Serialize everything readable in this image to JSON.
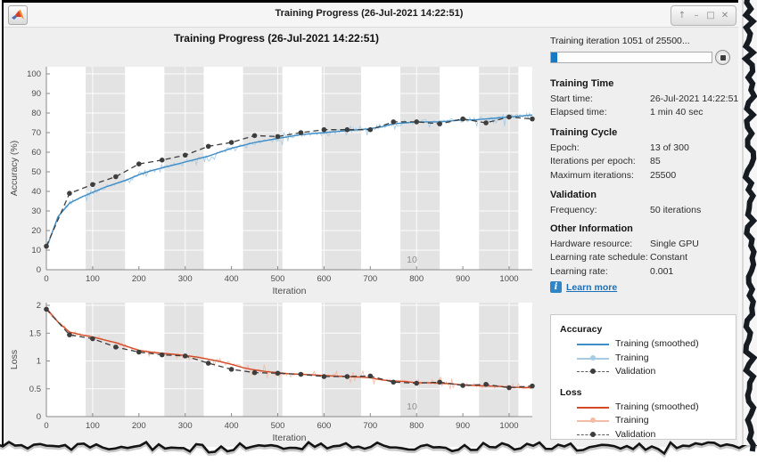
{
  "window": {
    "title": "Training Progress (26-Jul-2021 14:22:51)",
    "controls": [
      {
        "name": "float",
        "glyph": "↑"
      },
      {
        "name": "minimize",
        "glyph": "–"
      },
      {
        "name": "maximize",
        "glyph": "□"
      },
      {
        "name": "close",
        "glyph": "✕"
      }
    ]
  },
  "figure_title": "Training Progress (26-Jul-2021 14:22:51)",
  "panel": {
    "iteration_status": "Training iteration 1051 of 25500...",
    "progress_percent": 4.1,
    "sections": [
      {
        "title": "Training Time",
        "rows": [
          {
            "label": "Start time:",
            "value": "26-Jul-2021 14:22:51"
          },
          {
            "label": "Elapsed time:",
            "value": "1 min 40 sec"
          }
        ]
      },
      {
        "title": "Training Cycle",
        "rows": [
          {
            "label": "Epoch:",
            "value": "13 of 300"
          },
          {
            "label": "Iterations per epoch:",
            "value": "85"
          },
          {
            "label": "Maximum iterations:",
            "value": "25500"
          }
        ]
      },
      {
        "title": "Validation",
        "rows": [
          {
            "label": "Frequency:",
            "value": "50 iterations"
          }
        ]
      },
      {
        "title": "Other Information",
        "rows": [
          {
            "label": "Hardware resource:",
            "value": "Single GPU"
          },
          {
            "label": "Learning rate schedule:",
            "value": "Constant"
          },
          {
            "label": "Learning rate:",
            "value": "0.001"
          }
        ]
      }
    ],
    "learn_more": "Learn more"
  },
  "legend": {
    "groups": [
      {
        "title": "Accuracy",
        "entries": [
          "Training (smoothed)",
          "Training",
          "Validation"
        ]
      },
      {
        "title": "Loss",
        "entries": [
          "Training (smoothed)",
          "Training",
          "Validation"
        ]
      }
    ]
  },
  "colors": {
    "accent_blue": "#1779c4",
    "acc_smoothed": "#3f8dc6",
    "acc_raw": "#a8cbe4",
    "loss_smoothed": "#d24a26",
    "loss_raw": "#f3bca6",
    "validation": "#3d3d3d",
    "link_blue": "#1b6fb5",
    "epoch_band": "#e3e3e3"
  },
  "chart_data": [
    {
      "type": "line",
      "title": "Training Progress (26-Jul-2021 14:22:51)",
      "xlabel": "Iteration",
      "ylabel": "Accuracy (%)",
      "xlim": [
        0,
        1050
      ],
      "ylim": [
        0,
        100
      ],
      "xticks": [
        0,
        100,
        200,
        300,
        400,
        500,
        600,
        700,
        800,
        900,
        1000
      ],
      "yticks": [
        0,
        10,
        20,
        30,
        40,
        50,
        60,
        70,
        80,
        90,
        100
      ],
      "epoch_size": 85,
      "shaded_epochs": [
        2,
        4,
        6,
        8,
        10,
        12
      ],
      "epoch_label": {
        "text": "10",
        "iteration": 790
      },
      "series": [
        {
          "name": "Training (smoothed)",
          "x_step": 25,
          "y": [
            11,
            27,
            34,
            37,
            39.5,
            42,
            44,
            46,
            48.5,
            50.5,
            52,
            53.5,
            55,
            56.5,
            58,
            60,
            62,
            63.5,
            65,
            66,
            67,
            68,
            69,
            69.5,
            70,
            70.5,
            71,
            71.5,
            72,
            73,
            74.5,
            75,
            75.5,
            75.5,
            75.5,
            76,
            76.5,
            76.5,
            77,
            77.5,
            78,
            78.5,
            79
          ]
        },
        {
          "name": "Training",
          "style": "raw_noisy_version_of_smoothed"
        },
        {
          "name": "Validation",
          "x_step": 50,
          "y": [
            12,
            39,
            43.5,
            47.5,
            54,
            56,
            58.5,
            63,
            65,
            68.5,
            68,
            70,
            71.5,
            71.5,
            71.5,
            75.5,
            75.5,
            74.5,
            77,
            75,
            78,
            77
          ]
        }
      ]
    },
    {
      "type": "line",
      "xlabel": "Iteration",
      "ylabel": "Loss",
      "xlim": [
        0,
        1050
      ],
      "ylim": [
        0,
        2
      ],
      "xticks": [
        0,
        100,
        200,
        300,
        400,
        500,
        600,
        700,
        800,
        900,
        1000
      ],
      "yticks": [
        0,
        0.5,
        1,
        1.5,
        2
      ],
      "epoch_size": 85,
      "shaded_epochs": [
        2,
        4,
        6,
        8,
        10,
        12
      ],
      "epoch_label": {
        "text": "10",
        "iteration": 790
      },
      "series": [
        {
          "name": "Training (smoothed)",
          "x_step": 25,
          "y": [
            1.95,
            1.7,
            1.52,
            1.47,
            1.43,
            1.38,
            1.33,
            1.26,
            1.19,
            1.16,
            1.14,
            1.12,
            1.1,
            1.07,
            1.03,
            0.99,
            0.94,
            0.88,
            0.84,
            0.81,
            0.79,
            0.77,
            0.76,
            0.75,
            0.74,
            0.73,
            0.72,
            0.71,
            0.7,
            0.66,
            0.64,
            0.63,
            0.61,
            0.61,
            0.6,
            0.59,
            0.57,
            0.56,
            0.55,
            0.545,
            0.53,
            0.525,
            0.52
          ]
        },
        {
          "name": "Training",
          "style": "raw_noisy_version_of_smoothed"
        },
        {
          "name": "Validation",
          "x_step": 50,
          "y": [
            1.93,
            1.47,
            1.4,
            1.25,
            1.16,
            1.11,
            1.09,
            0.96,
            0.85,
            0.79,
            0.78,
            0.76,
            0.72,
            0.72,
            0.73,
            0.62,
            0.6,
            0.62,
            0.56,
            0.58,
            0.52,
            0.55
          ]
        }
      ]
    }
  ]
}
